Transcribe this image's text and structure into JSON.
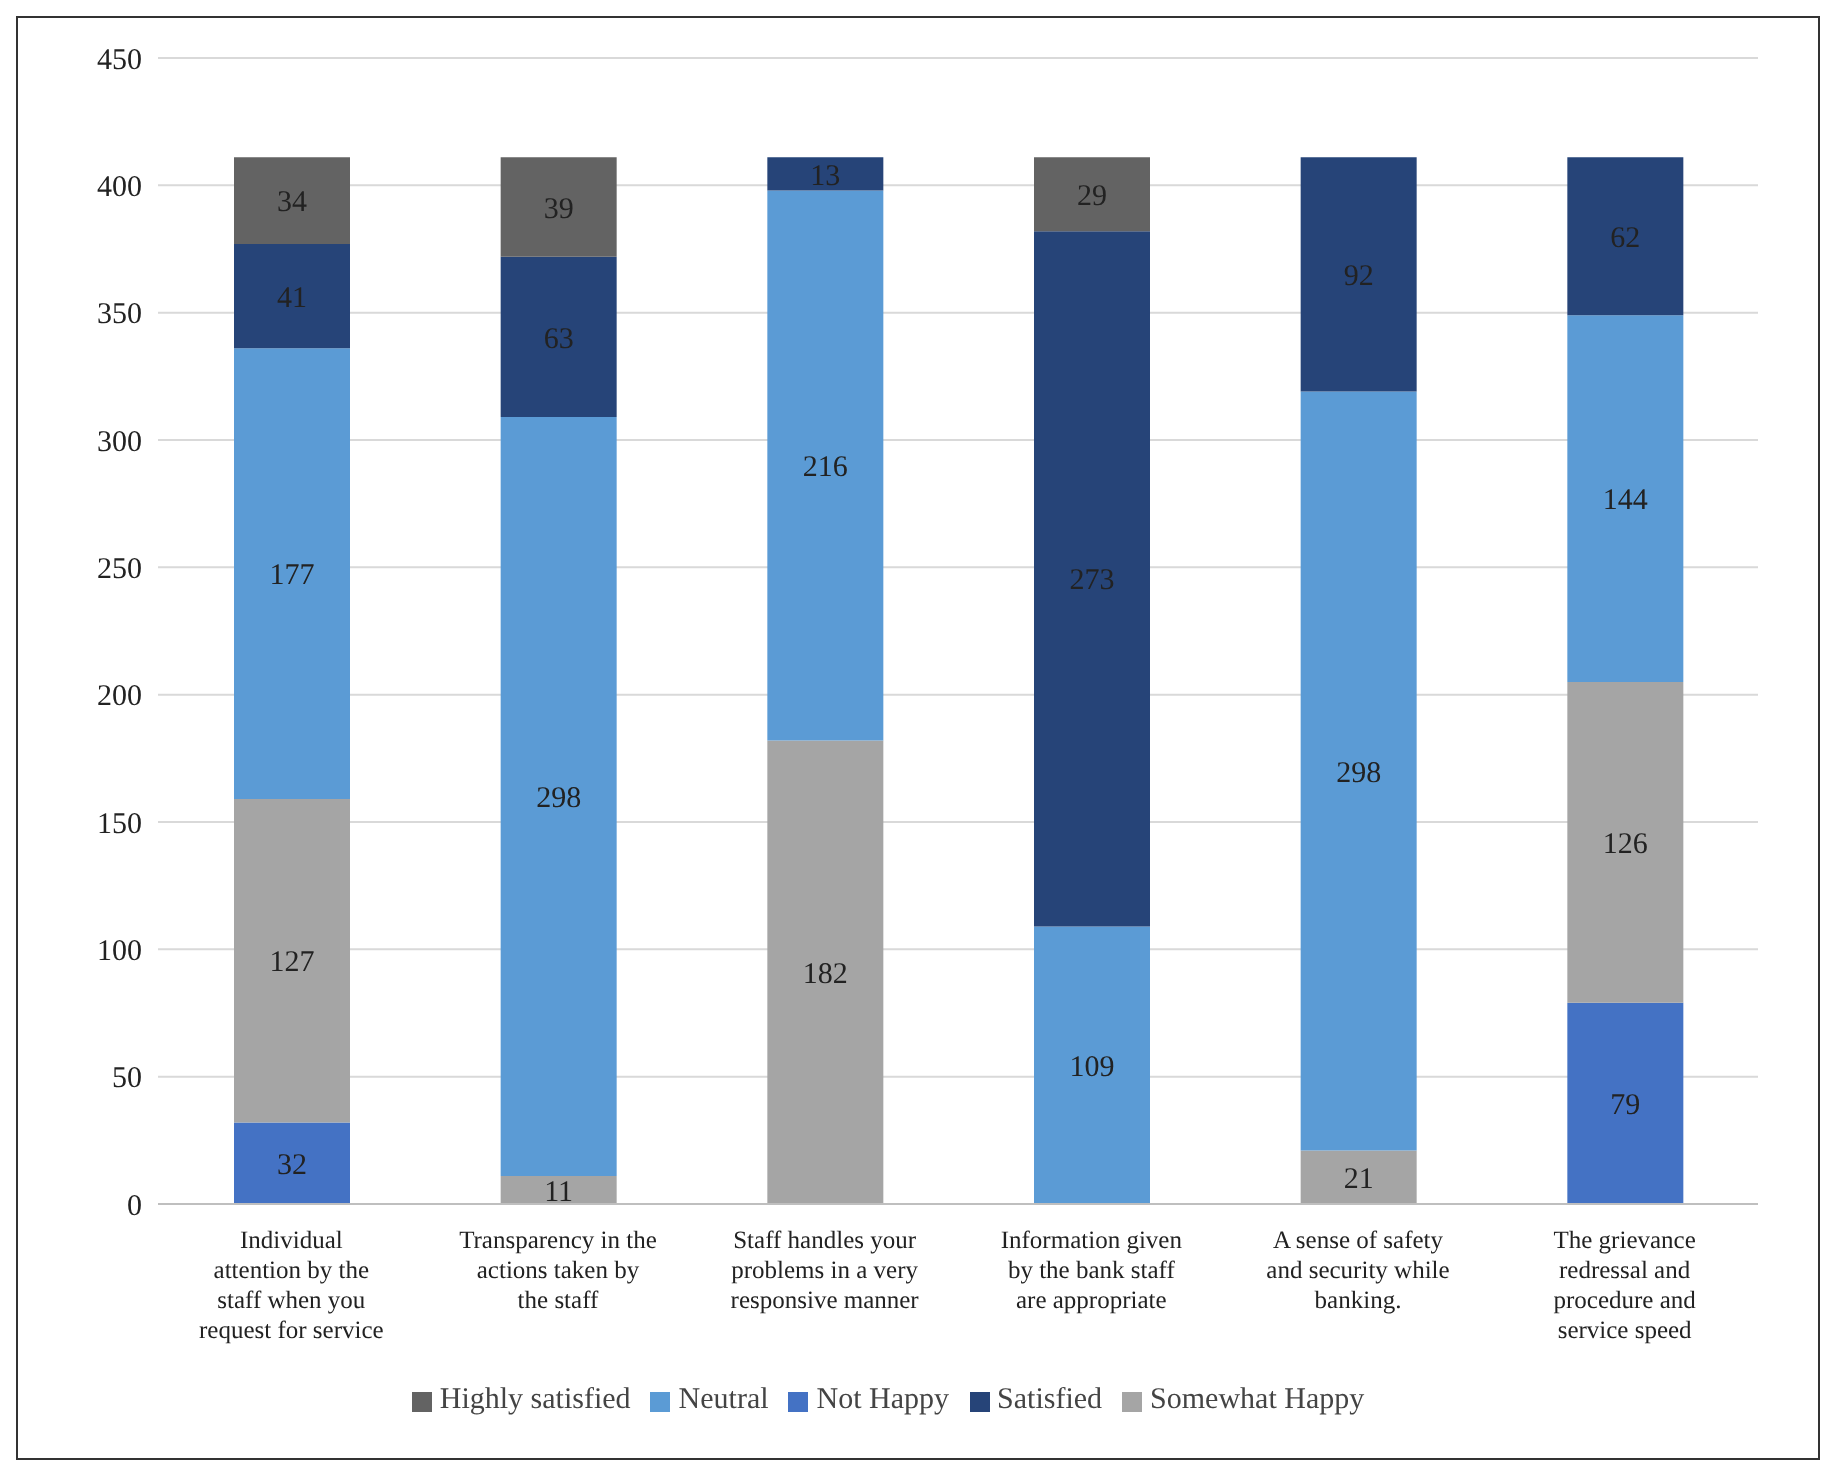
{
  "chart_data": {
    "type": "bar",
    "stacked": true,
    "categories": [
      "Individual attention by the staff when you request for service",
      "Transparency in the actions taken by the staff",
      "Staff handles your problems in a very responsive manner",
      "Information given by the bank staff are appropriate",
      "A sense of safety and security while banking.",
      "The grievance redressal and procedure and service speed"
    ],
    "series": [
      {
        "name": "Not Happy",
        "color": "#4472c4",
        "values": [
          32,
          null,
          null,
          null,
          null,
          79
        ]
      },
      {
        "name": "Somewhat Happy",
        "color": "#a5a5a5",
        "values": [
          127,
          11,
          182,
          null,
          21,
          126
        ]
      },
      {
        "name": "Neutral",
        "color": "#5b9bd5",
        "values": [
          177,
          298,
          216,
          109,
          298,
          144
        ]
      },
      {
        "name": "Satisfied",
        "color": "#264478",
        "values": [
          41,
          63,
          13,
          273,
          92,
          62
        ]
      },
      {
        "name": "Highly satisfied",
        "color": "#636363",
        "values": [
          34,
          39,
          null,
          29,
          null,
          null
        ]
      }
    ],
    "ylim": [
      0,
      450
    ],
    "yticks": [
      0,
      50,
      100,
      150,
      200,
      250,
      300,
      350,
      400,
      450
    ],
    "grid": "y",
    "legend": "bottom",
    "data_labels": true
  }
}
